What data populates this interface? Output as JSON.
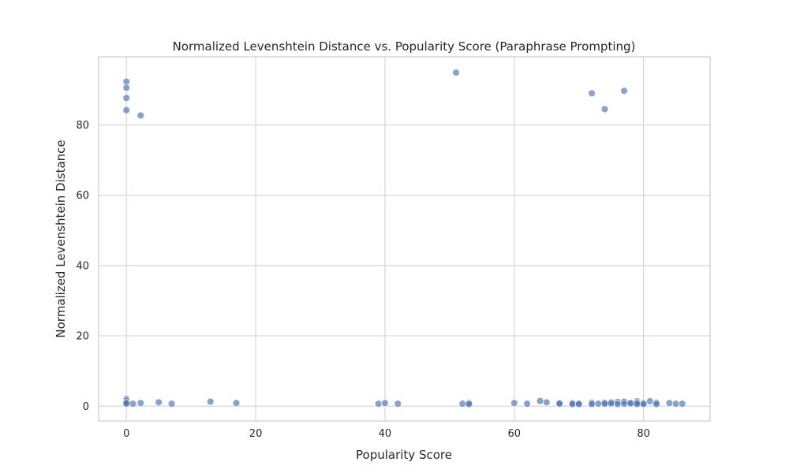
{
  "chart_data": {
    "type": "scatter",
    "title": "Normalized Levenshtein Distance vs. Popularity Score (Paraphrase Prompting)",
    "xlabel": "Popularity Score",
    "ylabel": "Normalized Levenshtein Distance",
    "xlim": [
      -4.3,
      90.3
    ],
    "ylim": [
      -4.2,
      99.4
    ],
    "xticks": [
      0,
      20,
      40,
      60,
      80
    ],
    "yticks": [
      0,
      20,
      40,
      60,
      80
    ],
    "grid": true,
    "color": "#4c72b0",
    "points": [
      [
        0,
        92.3
      ],
      [
        0,
        90.6
      ],
      [
        0,
        87.7
      ],
      [
        0,
        84.2
      ],
      [
        2.2,
        82.7
      ],
      [
        51,
        94.9
      ],
      [
        72,
        89.0
      ],
      [
        77,
        89.7
      ],
      [
        74,
        84.5
      ],
      [
        0,
        2.1
      ],
      [
        0,
        1.8
      ],
      [
        0,
        1.4
      ],
      [
        0,
        1.0
      ],
      [
        0,
        0.7
      ],
      [
        1,
        0.7
      ],
      [
        2.2,
        0.9
      ],
      [
        5,
        1.1
      ],
      [
        7,
        0.7
      ],
      [
        13,
        1.3
      ],
      [
        17,
        0.9
      ],
      [
        39,
        0.7
      ],
      [
        40,
        0.9
      ],
      [
        42,
        0.7
      ],
      [
        52,
        0.7
      ],
      [
        53,
        0.9
      ],
      [
        53,
        0.6
      ],
      [
        60,
        0.9
      ],
      [
        62,
        0.7
      ],
      [
        64,
        1.5
      ],
      [
        65,
        1.1
      ],
      [
        67,
        0.9
      ],
      [
        67,
        0.7
      ],
      [
        69,
        0.9
      ],
      [
        69,
        0.6
      ],
      [
        70,
        0.8
      ],
      [
        70,
        0.6
      ],
      [
        72,
        1.0
      ],
      [
        72,
        0.6
      ],
      [
        73,
        0.7
      ],
      [
        74,
        1.0
      ],
      [
        74,
        0.7
      ],
      [
        75,
        1.1
      ],
      [
        75,
        0.8
      ],
      [
        76,
        1.2
      ],
      [
        76,
        0.6
      ],
      [
        77,
        1.3
      ],
      [
        77,
        0.7
      ],
      [
        78,
        1.0
      ],
      [
        78,
        0.8
      ],
      [
        79,
        1.4
      ],
      [
        79,
        1.0
      ],
      [
        79,
        0.6
      ],
      [
        80,
        0.9
      ],
      [
        80,
        0.6
      ],
      [
        81,
        1.4
      ],
      [
        82,
        1.0
      ],
      [
        82,
        0.6
      ],
      [
        84,
        0.9
      ],
      [
        85,
        0.7
      ],
      [
        86,
        0.7
      ]
    ]
  }
}
